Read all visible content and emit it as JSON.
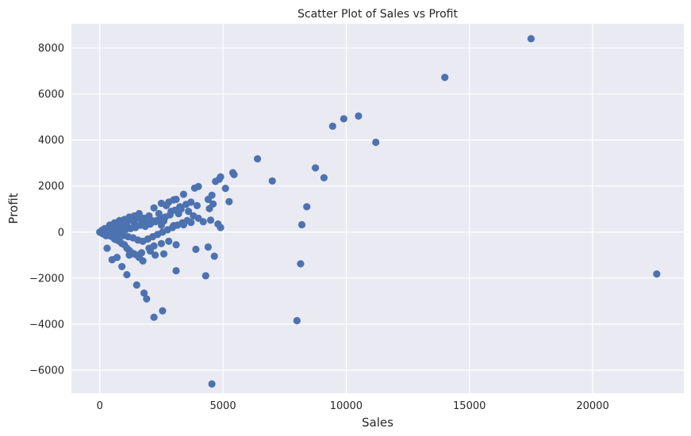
{
  "chart_data": {
    "type": "scatter",
    "title": "Scatter Plot of Sales vs Profit",
    "xlabel": "Sales",
    "ylabel": "Profit",
    "xlim": [
      -1150,
      23700
    ],
    "ylim": [
      -7000,
      9050
    ],
    "xticks": [
      0,
      5000,
      10000,
      15000,
      20000
    ],
    "yticks": [
      -6000,
      -4000,
      -2000,
      0,
      2000,
      4000,
      6000,
      8000
    ],
    "xtick_labels": [
      "0",
      "5000",
      "10000",
      "15000",
      "20000"
    ],
    "ytick_labels": [
      "−6000",
      "−4000",
      "−2000",
      "0",
      "2000",
      "4000",
      "6000",
      "8000"
    ],
    "grid": true,
    "background": "#eaeaf2",
    "point_color": "#4c72b0",
    "series": [
      {
        "points": [
          [
            17500,
            8400
          ],
          [
            14000,
            6720
          ],
          [
            10500,
            5040
          ],
          [
            9900,
            4920
          ],
          [
            9450,
            4600
          ],
          [
            11200,
            3900
          ],
          [
            6400,
            3180
          ],
          [
            8750,
            2790
          ],
          [
            7000,
            2220
          ],
          [
            9100,
            2360
          ],
          [
            5400,
            2580
          ],
          [
            5450,
            2500
          ],
          [
            4900,
            2400
          ],
          [
            4850,
            2300
          ],
          [
            4700,
            2200
          ],
          [
            5100,
            1900
          ],
          [
            4000,
            1980
          ],
          [
            3850,
            1910
          ],
          [
            3400,
            1640
          ],
          [
            3100,
            1420
          ],
          [
            3000,
            1400
          ],
          [
            2800,
            1300
          ],
          [
            5250,
            1320
          ],
          [
            4550,
            1600
          ],
          [
            4400,
            1420
          ],
          [
            4600,
            1220
          ],
          [
            3950,
            1150
          ],
          [
            4450,
            1020
          ],
          [
            8400,
            1100
          ],
          [
            8200,
            320
          ],
          [
            4900,
            200
          ],
          [
            4800,
            350
          ],
          [
            4500,
            520
          ],
          [
            4200,
            450
          ],
          [
            3700,
            420
          ],
          [
            3400,
            320
          ],
          [
            3000,
            280
          ],
          [
            2600,
            480
          ],
          [
            2500,
            300
          ],
          [
            2300,
            500
          ],
          [
            2100,
            500
          ],
          [
            1900,
            400
          ],
          [
            1800,
            600
          ],
          [
            1600,
            700
          ],
          [
            1500,
            600
          ],
          [
            1300,
            550
          ],
          [
            1200,
            520
          ],
          [
            1000,
            450
          ],
          [
            900,
            350
          ],
          [
            800,
            320
          ],
          [
            700,
            280
          ],
          [
            600,
            250
          ],
          [
            500,
            220
          ],
          [
            400,
            180
          ],
          [
            300,
            130
          ],
          [
            200,
            90
          ],
          [
            150,
            60
          ],
          [
            100,
            40
          ],
          [
            50,
            20
          ],
          [
            20,
            5
          ],
          [
            0,
            0
          ],
          [
            30,
            -20
          ],
          [
            80,
            -40
          ],
          [
            120,
            -60
          ],
          [
            200,
            -80
          ],
          [
            300,
            -120
          ],
          [
            400,
            -150
          ],
          [
            500,
            -200
          ],
          [
            600,
            -300
          ],
          [
            700,
            -350
          ],
          [
            800,
            -400
          ],
          [
            900,
            -500
          ],
          [
            1000,
            -550
          ],
          [
            1100,
            -700
          ],
          [
            1200,
            -800
          ],
          [
            1300,
            -900
          ],
          [
            1500,
            -1000
          ],
          [
            1600,
            -1100
          ],
          [
            1700,
            -900
          ],
          [
            2000,
            -700
          ],
          [
            2200,
            -600
          ],
          [
            2500,
            -500
          ],
          [
            2800,
            -400
          ],
          [
            3100,
            -550
          ],
          [
            3900,
            -750
          ],
          [
            4400,
            -650
          ],
          [
            4650,
            -1050
          ],
          [
            4300,
            -1900
          ],
          [
            3100,
            -1680
          ],
          [
            2600,
            -950
          ],
          [
            2250,
            -1000
          ],
          [
            2050,
            -820
          ],
          [
            1750,
            -1250
          ],
          [
            1400,
            -950
          ],
          [
            1200,
            -1000
          ],
          [
            1100,
            -1850
          ],
          [
            900,
            -1500
          ],
          [
            700,
            -1100
          ],
          [
            500,
            -1200
          ],
          [
            300,
            -700
          ],
          [
            1500,
            -2300
          ],
          [
            1800,
            -2650
          ],
          [
            1900,
            -2900
          ],
          [
            2200,
            -3700
          ],
          [
            2550,
            -3420
          ],
          [
            8000,
            -3850
          ],
          [
            8150,
            -1380
          ],
          [
            4550,
            -6600
          ],
          [
            22600,
            -1820
          ],
          [
            2200,
            1050
          ],
          [
            2500,
            1250
          ],
          [
            2700,
            1150
          ],
          [
            3300,
            1000
          ],
          [
            3600,
            900
          ],
          [
            3800,
            700
          ],
          [
            4000,
            600
          ],
          [
            3200,
            800
          ],
          [
            2900,
            900
          ],
          [
            2400,
            800
          ],
          [
            2000,
            700
          ],
          [
            1700,
            500
          ],
          [
            1400,
            400
          ],
          [
            1100,
            300
          ],
          [
            850,
            200
          ],
          [
            650,
            150
          ],
          [
            450,
            100
          ],
          [
            250,
            50
          ],
          [
            350,
            0
          ],
          [
            550,
            -50
          ],
          [
            750,
            -100
          ],
          [
            950,
            -150
          ],
          [
            1150,
            -200
          ],
          [
            1350,
            -250
          ],
          [
            1550,
            -350
          ],
          [
            1750,
            -400
          ],
          [
            1950,
            -300
          ],
          [
            2150,
            -200
          ],
          [
            2350,
            -100
          ],
          [
            2550,
            0
          ],
          [
            2750,
            100
          ],
          [
            2950,
            200
          ],
          [
            3150,
            300
          ],
          [
            3350,
            400
          ],
          [
            3550,
            500
          ],
          [
            1250,
            150
          ],
          [
            1050,
            100
          ],
          [
            850,
            50
          ],
          [
            650,
            -20
          ],
          [
            450,
            -80
          ],
          [
            250,
            -40
          ],
          [
            1450,
            200
          ],
          [
            1650,
            300
          ],
          [
            1850,
            250
          ],
          [
            2050,
            350
          ],
          [
            2250,
            450
          ],
          [
            2450,
            550
          ],
          [
            2650,
            650
          ],
          [
            2850,
            750
          ],
          [
            3050,
            950
          ],
          [
            3250,
            1100
          ],
          [
            3500,
            1200
          ],
          [
            3700,
            1300
          ],
          [
            600,
            400
          ],
          [
            800,
            500
          ],
          [
            1000,
            550
          ],
          [
            1200,
            650
          ],
          [
            1400,
            700
          ],
          [
            1600,
            800
          ],
          [
            400,
            300
          ],
          [
            200,
            150
          ],
          [
            100,
            80
          ],
          [
            60,
            -30
          ],
          [
            160,
            -90
          ],
          [
            260,
            -160
          ]
        ]
      }
    ]
  }
}
